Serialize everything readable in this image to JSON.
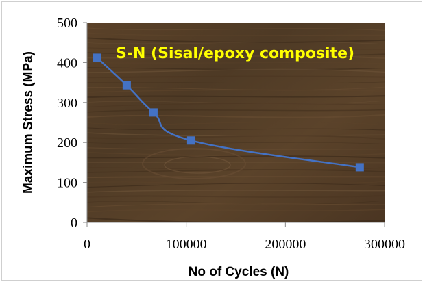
{
  "chart_data": {
    "type": "line",
    "title": "S-N (Sisal/epoxy composite)",
    "xlabel": "No of Cycles (N)",
    "ylabel": "Maximum Stress (MPa)",
    "xlim": [
      0,
      300000
    ],
    "ylim": [
      0,
      500
    ],
    "xticks": [
      0,
      100000,
      200000,
      300000
    ],
    "xtick_labels": [
      "0",
      "100000",
      "200000",
      "300000"
    ],
    "yticks": [
      0,
      100,
      200,
      300,
      400,
      500
    ],
    "ytick_labels": [
      "0",
      "100",
      "200",
      "300",
      "400",
      "500"
    ],
    "grid": false,
    "smoothed": true,
    "series": [
      {
        "x": [
          10000,
          40000,
          67000,
          105000,
          275000
        ],
        "y": [
          412,
          343,
          275,
          205,
          138
        ],
        "line_color": "#4472c4",
        "marker": "square"
      }
    ],
    "plot_background": "wood-texture",
    "title_color": "#ffff00"
  }
}
